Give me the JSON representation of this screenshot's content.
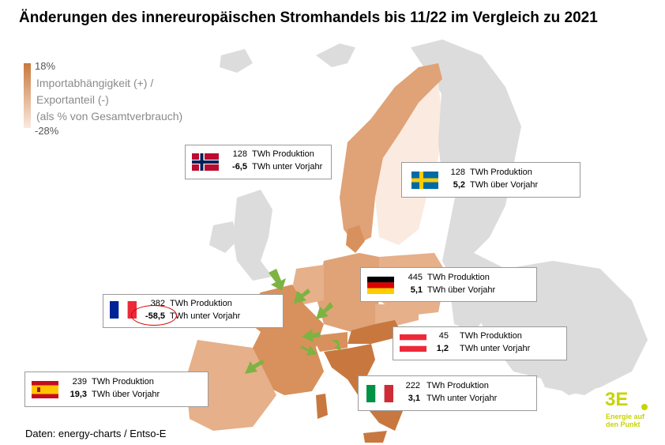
{
  "title": "Änderungen des innereuropäischen Stromhandels bis 11/22 im Vergleich zu 2021",
  "legend": {
    "max": "18%",
    "min": "-28%",
    "line1": "Importabhängigkeit (+) /",
    "line2": "Exportanteil (-)",
    "line3": "(als % von Gesamtverbrauch)",
    "color_max": "#c8783e",
    "color_min": "#fbeadf"
  },
  "countries": {
    "norway": {
      "production": "128",
      "change": "-6,5",
      "prod_label": "TWh Produktion",
      "change_label": "TWh unter Vorjahr"
    },
    "sweden": {
      "production": "128",
      "change": "5,2",
      "prod_label": "TWh Produktion",
      "change_label": "TWh über Vorjahr"
    },
    "germany": {
      "production": "445",
      "change": "5,1",
      "prod_label": "TWh Produktion",
      "change_label": "TWh über Vorjahr"
    },
    "france": {
      "production": "382",
      "change": "-58,5",
      "prod_label": "TWh Produktion",
      "change_label": "TWh unter Vorjahr"
    },
    "austria": {
      "production": "45",
      "change": "1,2",
      "prod_label": "TWh Produktion",
      "change_label": "TWh unter Vorjahr"
    },
    "spain": {
      "production": "239",
      "change": "19,3",
      "prod_label": "TWh Produktion",
      "change_label": "TWh über Vorjahr"
    },
    "italy": {
      "production": "222",
      "change": "3,1",
      "prod_label": "TWh Produktion",
      "change_label": "TWh unter Vorjahr"
    }
  },
  "source": "Daten: energy-charts / Entso-E",
  "logo": {
    "brand": "3E",
    "tagline_1": "Energie auf",
    "tagline_2": "den Punkt",
    "color": "#c7d400"
  },
  "colors": {
    "land_grey": "#dcdcdc",
    "arrow_green": "#7cb342",
    "highlight_red": "#d40000"
  }
}
